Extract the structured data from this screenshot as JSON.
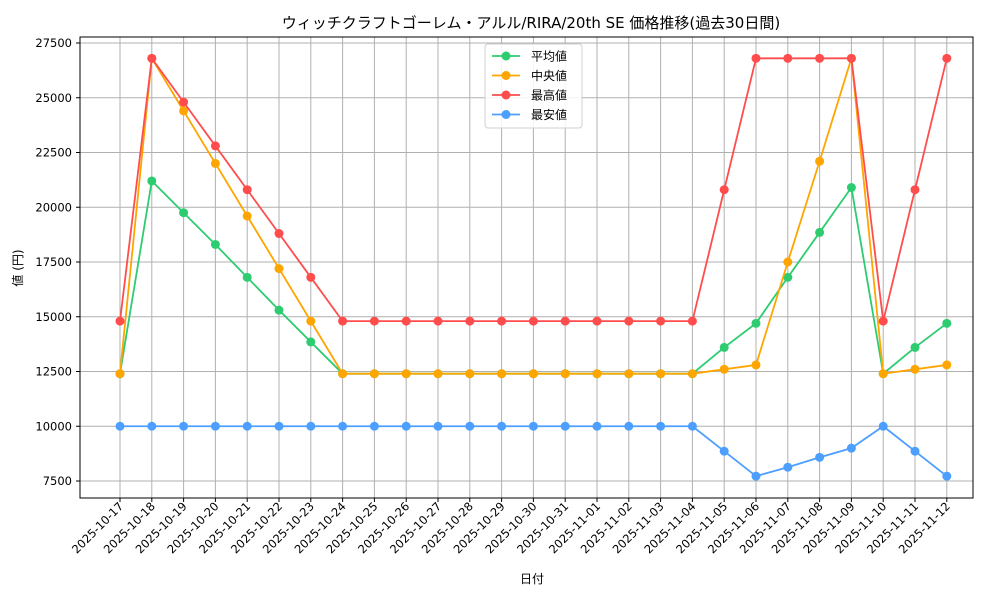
{
  "chart_data": {
    "type": "line",
    "title": "ウィッチクラフトゴーレム・アルル/RIRA/20th SE 価格推移(過去30日間)",
    "xlabel": "日付",
    "ylabel": "値 (円)",
    "ylim": [
      6800,
      27800
    ],
    "yticks": [
      7500,
      10000,
      12500,
      15000,
      17500,
      20000,
      22500,
      25000,
      27500
    ],
    "grid": true,
    "legend_position": "upper center",
    "categories": [
      "2025-10-17",
      "2025-10-18",
      "2025-10-19",
      "2025-10-20",
      "2025-10-21",
      "2025-10-22",
      "2025-10-23",
      "2025-10-24",
      "2025-10-25",
      "2025-10-26",
      "2025-10-27",
      "2025-10-28",
      "2025-10-29",
      "2025-10-30",
      "2025-10-31",
      "2025-11-01",
      "2025-11-02",
      "2025-11-03",
      "2025-11-04",
      "2025-11-05",
      "2025-11-06",
      "2025-11-07",
      "2025-11-08",
      "2025-11-09",
      "2025-11-10",
      "2025-11-11",
      "2025-11-12"
    ],
    "series": [
      {
        "name": "平均値",
        "color": "#2ecc71",
        "values": [
          12400,
          21200,
          19750,
          18300,
          16800,
          15300,
          13850,
          12400,
          12400,
          12400,
          12400,
          12400,
          12400,
          12400,
          12400,
          12400,
          12400,
          12400,
          12400,
          13600,
          14700,
          16800,
          18850,
          20900,
          12400,
          13600,
          14700
        ]
      },
      {
        "name": "中央値",
        "color": "#ffa500",
        "values": [
          12400,
          26800,
          24400,
          22000,
          19600,
          17200,
          14800,
          12400,
          12400,
          12400,
          12400,
          12400,
          12400,
          12400,
          12400,
          12400,
          12400,
          12400,
          12400,
          12600,
          12800,
          17500,
          22100,
          26800,
          12400,
          12600,
          12800
        ]
      },
      {
        "name": "最高値",
        "color": "#ff4d4d",
        "values": [
          14800,
          26800,
          24800,
          22800,
          20800,
          18800,
          16800,
          14800,
          14800,
          14800,
          14800,
          14800,
          14800,
          14800,
          14800,
          14800,
          14800,
          14800,
          14800,
          20800,
          26800,
          26800,
          26800,
          26800,
          14800,
          20800,
          26800
        ]
      },
      {
        "name": "最安値",
        "color": "#4d9fff",
        "values": [
          10000,
          10000,
          10000,
          10000,
          10000,
          10000,
          10000,
          10000,
          10000,
          10000,
          10000,
          10000,
          10000,
          10000,
          10000,
          10000,
          10000,
          10000,
          10000,
          8860,
          7720,
          8130,
          8580,
          9000,
          10000,
          8860,
          7720
        ]
      }
    ]
  }
}
